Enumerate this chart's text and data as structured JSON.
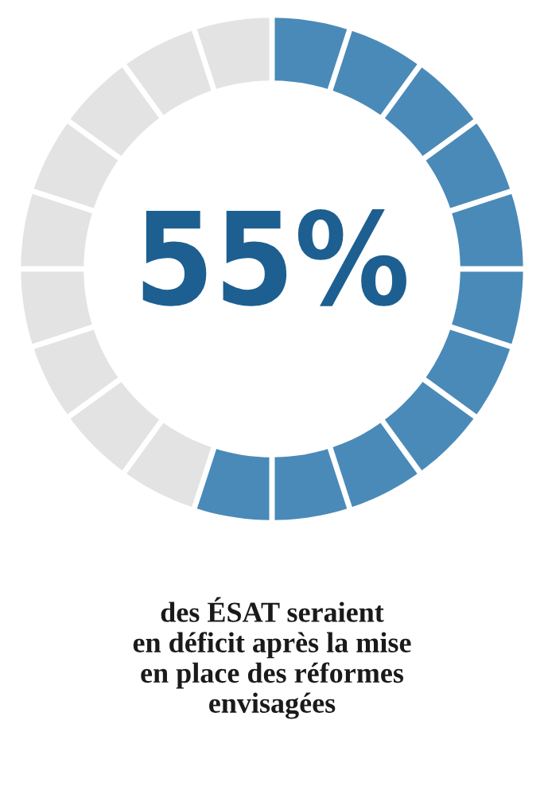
{
  "chart_data": {
    "type": "donut",
    "categories": [
      null,
      null
    ],
    "values": [
      55,
      45
    ],
    "colors": [
      "#4a8ab8",
      "#e3e3e3"
    ],
    "value_labels": [
      "55%",
      null
    ],
    "annotations": [
      "des ÉSAT seraient\nen déficit après la mise\nen place des réformes\nenvisagées"
    ]
  }
}
